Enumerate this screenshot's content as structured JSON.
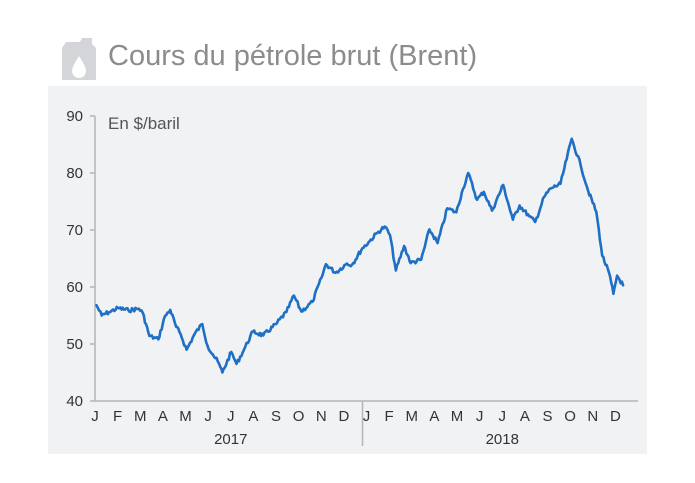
{
  "title": "Cours du pétrole brut (Brent)",
  "icon": "oil-jerrycan-icon",
  "colors": {
    "line": "#1f6fc5",
    "title": "#8c8c8c",
    "icon": "#d3d5d8",
    "panel": "#f1f2f4"
  },
  "chart_data": {
    "type": "line",
    "title": "Cours du pétrole brut (Brent)",
    "ylabel": "En $/baril",
    "ylim": [
      40,
      90
    ],
    "yticks": [
      "40",
      "50",
      "60",
      "70",
      "80",
      "90"
    ],
    "xlim": [
      "2017-01-01",
      "2018-12-31"
    ],
    "grid": false,
    "months": [
      "J",
      "F",
      "M",
      "A",
      "M",
      "J",
      "J",
      "A",
      "S",
      "O",
      "N",
      "D",
      "J",
      "F",
      "M",
      "A",
      "M",
      "J",
      "J",
      "A",
      "S",
      "O",
      "N",
      "D"
    ],
    "years": [
      "2017",
      "2018"
    ],
    "series": [
      {
        "x": [
          "2017-01-03",
          "2017-01-10",
          "2017-01-20",
          "2017-02-01",
          "2017-02-15",
          "2017-03-01",
          "2017-03-06",
          "2017-03-15",
          "2017-03-27",
          "2017-04-05",
          "2017-04-12",
          "2017-04-20",
          "2017-04-26",
          "2017-05-04",
          "2017-05-15",
          "2017-05-25",
          "2017-06-01",
          "2017-06-08",
          "2017-06-15",
          "2017-06-21",
          "2017-07-03",
          "2017-07-10",
          "2017-07-20",
          "2017-08-01",
          "2017-08-15",
          "2017-09-01",
          "2017-09-15",
          "2017-09-25",
          "2017-10-05",
          "2017-10-20",
          "2017-11-01",
          "2017-11-07",
          "2017-11-20",
          "2017-12-05",
          "2017-12-12",
          "2017-12-26",
          "2018-01-03",
          "2018-01-15",
          "2018-01-25",
          "2018-02-01",
          "2018-02-09",
          "2018-02-20",
          "2018-03-01",
          "2018-03-15",
          "2018-03-26",
          "2018-04-06",
          "2018-04-19",
          "2018-05-01",
          "2018-05-10",
          "2018-05-17",
          "2018-05-29",
          "2018-06-07",
          "2018-06-18",
          "2018-07-03",
          "2018-07-16",
          "2018-07-25",
          "2018-08-07",
          "2018-08-15",
          "2018-08-27",
          "2018-09-05",
          "2018-09-18",
          "2018-10-03",
          "2018-10-15",
          "2018-10-25",
          "2018-11-05",
          "2018-11-13",
          "2018-11-22",
          "2018-11-28",
          "2018-12-03",
          "2018-12-11"
        ],
        "y": [
          56.8,
          55,
          55.6,
          56.3,
          55.9,
          56.2,
          55.5,
          51.4,
          50.8,
          54.9,
          56,
          53,
          51.7,
          49,
          51.8,
          53.5,
          49.7,
          48.2,
          46.9,
          45,
          48.6,
          46.5,
          49,
          52.2,
          51.5,
          53.5,
          55.6,
          58.5,
          55.7,
          57.4,
          61.6,
          64,
          62.5,
          64.1,
          63.9,
          66.8,
          67.8,
          69.5,
          70.6,
          69.1,
          62.9,
          67.2,
          64.2,
          64.8,
          70.1,
          67.7,
          73.8,
          73.1,
          77.2,
          80,
          75.3,
          76.7,
          73.4,
          77.9,
          71.8,
          74.3,
          72.4,
          71.4,
          75.8,
          77.3,
          78.1,
          86,
          81.4,
          76.9,
          73.2,
          65.5,
          62.5,
          58.8,
          62,
          60.3
        ]
      }
    ]
  }
}
